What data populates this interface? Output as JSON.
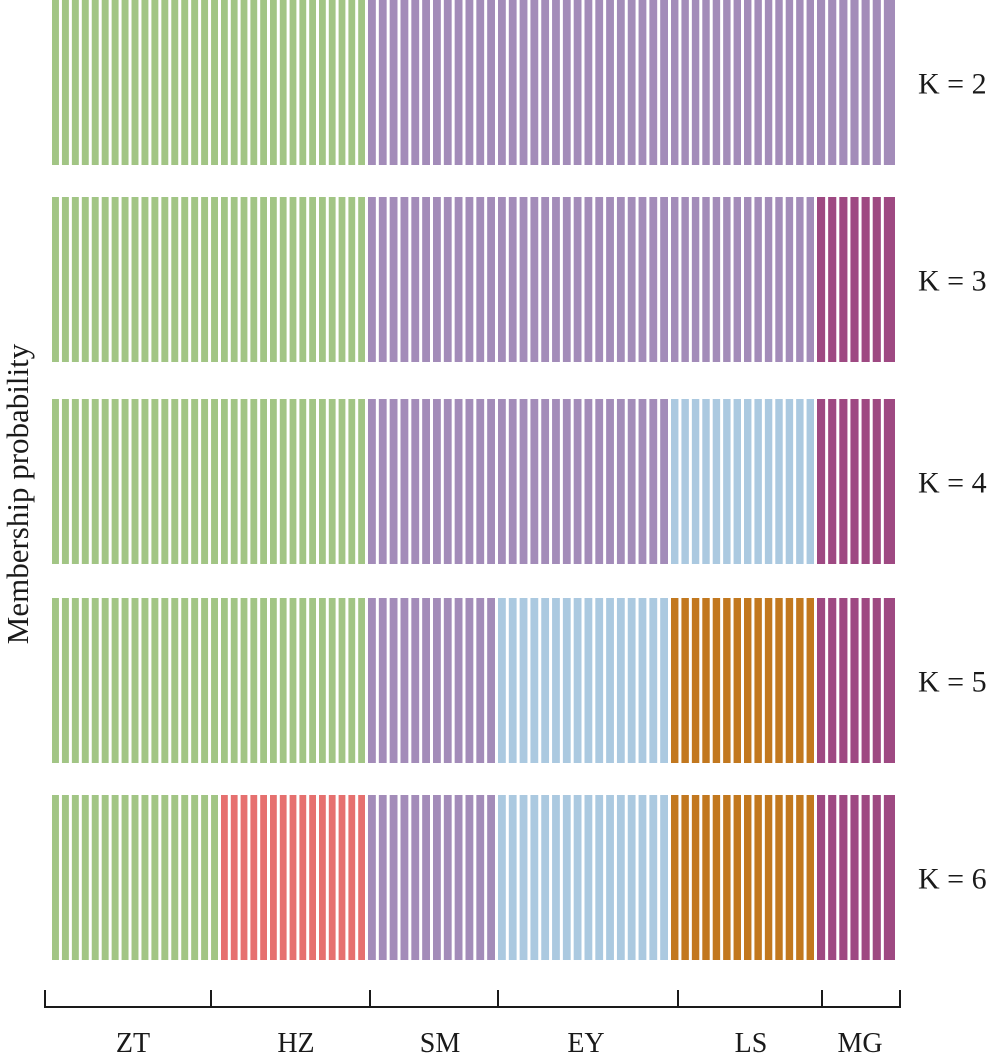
{
  "chart_data": {
    "type": "bar",
    "subtype": "stacked-membership-structure-plot",
    "ylabel": "Membership probability",
    "xlabel": "",
    "ylim": [
      0,
      1
    ],
    "grid": false,
    "legend": "none",
    "groups": [
      {
        "name": "ZT",
        "n": 17
      },
      {
        "name": "HZ",
        "n": 15
      },
      {
        "name": "SM",
        "n": 12
      },
      {
        "name": "EY",
        "n": 16
      },
      {
        "name": "LS",
        "n": 14
      },
      {
        "name": "MG",
        "n": 7
      }
    ],
    "colors": {
      "green": "#a2c585",
      "purple": "#a38cb9",
      "plum": "#9e4982",
      "lightblue": "#abc9e0",
      "orange": "#c2781f",
      "salmon": "#e6706f"
    },
    "panels": [
      {
        "label": "K = 2",
        "k": 2,
        "assignment": [
          "green",
          "green",
          "purple",
          "purple",
          "purple",
          "purple"
        ]
      },
      {
        "label": "K = 3",
        "k": 3,
        "assignment": [
          "green",
          "green",
          "purple",
          "purple",
          "purple",
          "plum"
        ]
      },
      {
        "label": "K = 4",
        "k": 4,
        "assignment": [
          "green",
          "green",
          "purple",
          "purple",
          "lightblue",
          "plum"
        ]
      },
      {
        "label": "K = 5",
        "k": 5,
        "assignment": [
          "green",
          "green",
          "purple",
          "lightblue",
          "orange",
          "plum"
        ]
      },
      {
        "label": "K = 6",
        "k": 6,
        "assignment": [
          "green",
          "salmon",
          "purple",
          "lightblue",
          "orange",
          "plum"
        ]
      }
    ],
    "membership_probability_per_individual": 1.0
  }
}
